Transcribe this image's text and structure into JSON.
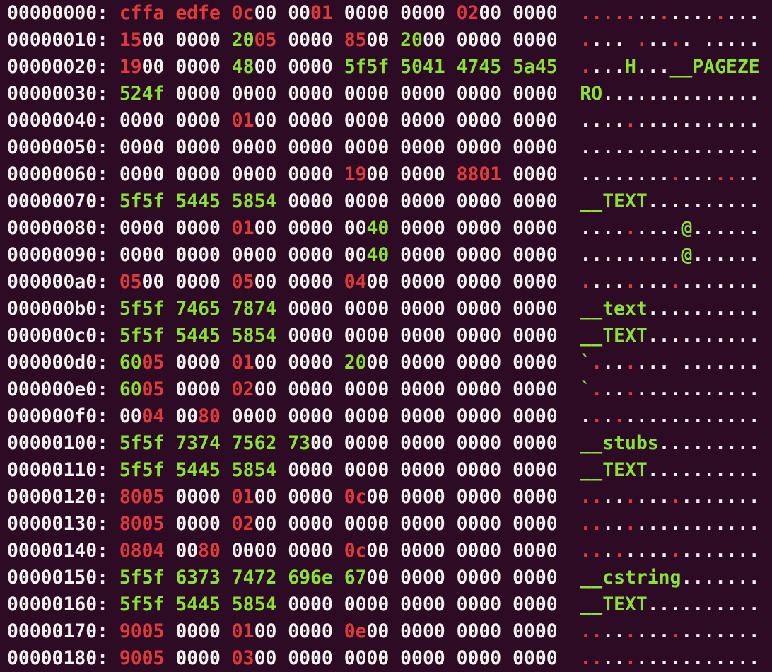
{
  "colors": {
    "zero": "#f2f2f0",
    "printable": "#8ae234",
    "other": "#e03a3a",
    "background": "#2e0b24"
  },
  "rows": [
    {
      "offset": "00000000:",
      "groups": [
        "cffa",
        "edfe",
        "0c00",
        "0001",
        "0000",
        "0000",
        "0200",
        "0000"
      ],
      "ascii": "................"
    },
    {
      "offset": "00000010:",
      "groups": [
        "1500",
        "0000",
        "2005",
        "0000",
        "8500",
        "2000",
        "0000",
        "0000"
      ],
      "ascii": ".... ..... ....."
    },
    {
      "offset": "00000020:",
      "groups": [
        "1900",
        "0000",
        "4800",
        "0000",
        "5f5f",
        "5041",
        "4745",
        "5a45"
      ],
      "ascii": "....H...__PAGEZE"
    },
    {
      "offset": "00000030:",
      "groups": [
        "524f",
        "0000",
        "0000",
        "0000",
        "0000",
        "0000",
        "0000",
        "0000"
      ],
      "ascii": "RO.............."
    },
    {
      "offset": "00000040:",
      "groups": [
        "0000",
        "0000",
        "0100",
        "0000",
        "0000",
        "0000",
        "0000",
        "0000"
      ],
      "ascii": "................"
    },
    {
      "offset": "00000050:",
      "groups": [
        "0000",
        "0000",
        "0000",
        "0000",
        "0000",
        "0000",
        "0000",
        "0000"
      ],
      "ascii": "................"
    },
    {
      "offset": "00000060:",
      "groups": [
        "0000",
        "0000",
        "0000",
        "0000",
        "1900",
        "0000",
        "8801",
        "0000"
      ],
      "ascii": "................"
    },
    {
      "offset": "00000070:",
      "groups": [
        "5f5f",
        "5445",
        "5854",
        "0000",
        "0000",
        "0000",
        "0000",
        "0000"
      ],
      "ascii": "__TEXT.........."
    },
    {
      "offset": "00000080:",
      "groups": [
        "0000",
        "0000",
        "0100",
        "0000",
        "0040",
        "0000",
        "0000",
        "0000"
      ],
      "ascii": ".........@......"
    },
    {
      "offset": "00000090:",
      "groups": [
        "0000",
        "0000",
        "0000",
        "0000",
        "0040",
        "0000",
        "0000",
        "0000"
      ],
      "ascii": ".........@......"
    },
    {
      "offset": "000000a0:",
      "groups": [
        "0500",
        "0000",
        "0500",
        "0000",
        "0400",
        "0000",
        "0000",
        "0000"
      ],
      "ascii": "................"
    },
    {
      "offset": "000000b0:",
      "groups": [
        "5f5f",
        "7465",
        "7874",
        "0000",
        "0000",
        "0000",
        "0000",
        "0000"
      ],
      "ascii": "__text.........."
    },
    {
      "offset": "000000c0:",
      "groups": [
        "5f5f",
        "5445",
        "5854",
        "0000",
        "0000",
        "0000",
        "0000",
        "0000"
      ],
      "ascii": "__TEXT.........."
    },
    {
      "offset": "000000d0:",
      "groups": [
        "6005",
        "0000",
        "0100",
        "0000",
        "2000",
        "0000",
        "0000",
        "0000"
      ],
      "ascii": "`....... ......."
    },
    {
      "offset": "000000e0:",
      "groups": [
        "6005",
        "0000",
        "0200",
        "0000",
        "0000",
        "0000",
        "0000",
        "0000"
      ],
      "ascii": "`..............."
    },
    {
      "offset": "000000f0:",
      "groups": [
        "0004",
        "0080",
        "0000",
        "0000",
        "0000",
        "0000",
        "0000",
        "0000"
      ],
      "ascii": "................"
    },
    {
      "offset": "00000100:",
      "groups": [
        "5f5f",
        "7374",
        "7562",
        "7300",
        "0000",
        "0000",
        "0000",
        "0000"
      ],
      "ascii": "__stubs........."
    },
    {
      "offset": "00000110:",
      "groups": [
        "5f5f",
        "5445",
        "5854",
        "0000",
        "0000",
        "0000",
        "0000",
        "0000"
      ],
      "ascii": "__TEXT.........."
    },
    {
      "offset": "00000120:",
      "groups": [
        "8005",
        "0000",
        "0100",
        "0000",
        "0c00",
        "0000",
        "0000",
        "0000"
      ],
      "ascii": "................"
    },
    {
      "offset": "00000130:",
      "groups": [
        "8005",
        "0000",
        "0200",
        "0000",
        "0000",
        "0000",
        "0000",
        "0000"
      ],
      "ascii": "................"
    },
    {
      "offset": "00000140:",
      "groups": [
        "0804",
        "0080",
        "0000",
        "0000",
        "0c00",
        "0000",
        "0000",
        "0000"
      ],
      "ascii": "................"
    },
    {
      "offset": "00000150:",
      "groups": [
        "5f5f",
        "6373",
        "7472",
        "696e",
        "6700",
        "0000",
        "0000",
        "0000"
      ],
      "ascii": "__cstring......."
    },
    {
      "offset": "00000160:",
      "groups": [
        "5f5f",
        "5445",
        "5854",
        "0000",
        "0000",
        "0000",
        "0000",
        "0000"
      ],
      "ascii": "__TEXT.........."
    },
    {
      "offset": "00000170:",
      "groups": [
        "9005",
        "0000",
        "0100",
        "0000",
        "0e00",
        "0000",
        "0000",
        "0000"
      ],
      "ascii": "................"
    },
    {
      "offset": "00000180:",
      "groups": [
        "9005",
        "0000",
        "0300",
        "0000",
        "0000",
        "0000",
        "0000",
        "0000"
      ],
      "ascii": "................"
    }
  ]
}
